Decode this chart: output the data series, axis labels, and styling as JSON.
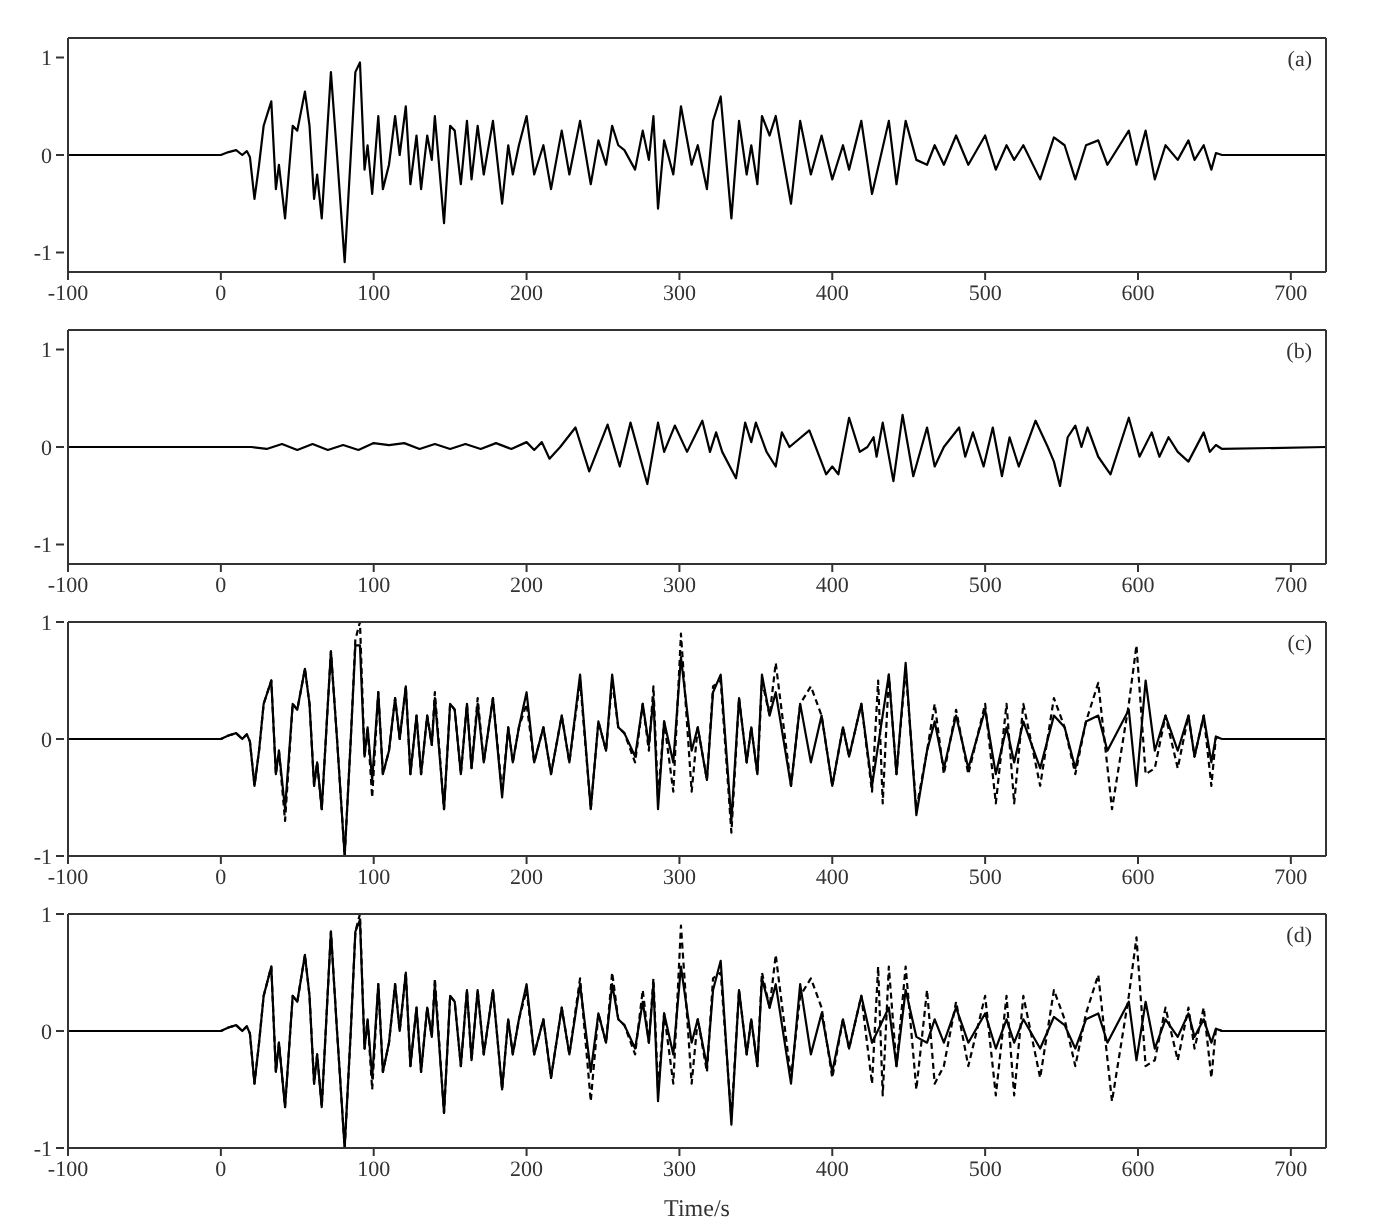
{
  "chart_data": [
    {
      "type": "line",
      "annotations": [
        "(a)"
      ],
      "xlim": [
        -100,
        723
      ],
      "xticks": [
        -100,
        0,
        100,
        200,
        300,
        400,
        500,
        600,
        700
      ],
      "ylim": [
        -1.2,
        1.2
      ],
      "yticks": [
        -1,
        0,
        1
      ],
      "series": [
        {
          "color": "#000000",
          "line_style": "solid",
          "x": [
            -100,
            0,
            5,
            10,
            14,
            17,
            19,
            22,
            25,
            28,
            33,
            36,
            38,
            42,
            47,
            50,
            55,
            58,
            61,
            63,
            66,
            72,
            76,
            81,
            85,
            88,
            91,
            94,
            96,
            99,
            103,
            106,
            110,
            114,
            117,
            121,
            124,
            128,
            131,
            135,
            138,
            140,
            146,
            150,
            153,
            157,
            161,
            164,
            168,
            172,
            178,
            184,
            188,
            191,
            195,
            200,
            205,
            211,
            216,
            223,
            228,
            235,
            242,
            247,
            252,
            256,
            260,
            264,
            271,
            276,
            280,
            283,
            286,
            290,
            296,
            301,
            308,
            312,
            318,
            322,
            327,
            334,
            339,
            344,
            347,
            351,
            354,
            359,
            363,
            373,
            379,
            386,
            393,
            400,
            407,
            411,
            419,
            426,
            437,
            442,
            448,
            455,
            462,
            467,
            473,
            481,
            489,
            500,
            507,
            514,
            519,
            525,
            536,
            545,
            552,
            559,
            566,
            574,
            580,
            594,
            599,
            605,
            611,
            618,
            626,
            633,
            637,
            643,
            648,
            651,
            655,
            723
          ],
          "values": [
            0,
            0,
            0.03,
            0.05,
            0,
            0.04,
            -0.02,
            -0.45,
            -0.1,
            0.3,
            0.55,
            -0.35,
            -0.1,
            -0.65,
            0.3,
            0.25,
            0.65,
            0.3,
            -0.45,
            -0.2,
            -0.65,
            0.85,
            0,
            -1.1,
            0,
            0.85,
            0.95,
            -0.15,
            0.1,
            -0.4,
            0.4,
            -0.35,
            -0.1,
            0.4,
            0,
            0.5,
            -0.3,
            0.2,
            -0.35,
            0.2,
            -0.05,
            0.4,
            -0.7,
            0.3,
            0.25,
            -0.3,
            0.35,
            -0.25,
            0.3,
            -0.2,
            0.35,
            -0.5,
            0.1,
            -0.2,
            0.1,
            0.4,
            -0.2,
            0.1,
            -0.35,
            0.25,
            -0.2,
            0.35,
            -0.3,
            0.15,
            -0.1,
            0.3,
            0.1,
            0.05,
            -0.15,
            0.25,
            -0.05,
            0.4,
            -0.55,
            0.15,
            -0.2,
            0.5,
            -0.1,
            0.1,
            -0.35,
            0.35,
            0.6,
            -0.65,
            0.35,
            -0.2,
            0.1,
            -0.3,
            0.4,
            0.2,
            0.4,
            -0.5,
            0.35,
            -0.2,
            0.2,
            -0.25,
            0.1,
            -0.15,
            0.35,
            -0.4,
            0.35,
            -0.3,
            0.35,
            -0.05,
            -0.1,
            0.1,
            -0.1,
            0.2,
            -0.1,
            0.2,
            -0.15,
            0.1,
            -0.05,
            0.1,
            -0.25,
            0.18,
            0.1,
            -0.25,
            0.1,
            0.15,
            -0.1,
            0.25,
            -0.1,
            0.25,
            -0.25,
            0.1,
            -0.05,
            0.15,
            -0.05,
            0.1,
            -0.15,
            0.02,
            0,
            0
          ]
        }
      ]
    },
    {
      "type": "line",
      "annotations": [
        "(b)"
      ],
      "xlim": [
        -100,
        723
      ],
      "xticks": [
        -100,
        0,
        100,
        200,
        300,
        400,
        500,
        600,
        700
      ],
      "ylim": [
        -1.2,
        1.2
      ],
      "yticks": [
        -1,
        0,
        1
      ],
      "series": [
        {
          "color": "#000000",
          "line_style": "solid",
          "x": [
            -100,
            20,
            30,
            40,
            50,
            60,
            70,
            80,
            90,
            100,
            110,
            120,
            130,
            140,
            150,
            160,
            170,
            180,
            190,
            200,
            205,
            210,
            215,
            222,
            232,
            241,
            253,
            261,
            268,
            279,
            286,
            290,
            297,
            305,
            315,
            320,
            324,
            328,
            337,
            343,
            347,
            350,
            357,
            363,
            367,
            372,
            385,
            396,
            400,
            404,
            411,
            418,
            423,
            427,
            429,
            433,
            440,
            446,
            453,
            462,
            467,
            473,
            483,
            487,
            492,
            499,
            505,
            511,
            516,
            522,
            533,
            541,
            545,
            549,
            554,
            559,
            563,
            567,
            574,
            582,
            594,
            601,
            609,
            614,
            620,
            626,
            633,
            643,
            647,
            651,
            655,
            723
          ],
          "values": [
            0,
            0,
            -0.02,
            0.03,
            -0.03,
            0.03,
            -0.03,
            0.02,
            -0.03,
            0.04,
            0.02,
            0.04,
            -0.02,
            0.03,
            -0.02,
            0.03,
            -0.02,
            0.04,
            -0.02,
            0.05,
            -0.03,
            0.05,
            -0.12,
            0,
            0.2,
            -0.25,
            0.23,
            -0.2,
            0.25,
            -0.38,
            0.25,
            -0.05,
            0.22,
            -0.05,
            0.27,
            -0.05,
            0.15,
            -0.05,
            -0.32,
            0.25,
            0.05,
            0.25,
            -0.05,
            -0.2,
            0.15,
            0,
            0.17,
            -0.28,
            -0.2,
            -0.28,
            0.3,
            -0.05,
            0,
            0.1,
            -0.1,
            0.25,
            -0.35,
            0.33,
            -0.3,
            0.2,
            -0.2,
            0,
            0.2,
            -0.1,
            0.15,
            -0.2,
            0.2,
            -0.3,
            0.1,
            -0.2,
            0.27,
            0,
            -0.15,
            -0.4,
            0.1,
            0.22,
            0,
            0.2,
            -0.1,
            -0.28,
            0.3,
            -0.1,
            0.15,
            -0.1,
            0.1,
            -0.05,
            -0.15,
            0.15,
            -0.05,
            0.02,
            -0.02,
            0
          ]
        }
      ]
    },
    {
      "type": "line",
      "annotations": [
        "(c)"
      ],
      "xlim": [
        -100,
        723
      ],
      "xticks": [
        -100,
        0,
        100,
        200,
        300,
        400,
        500,
        600,
        700
      ],
      "ylim": [
        -1,
        1
      ],
      "yticks": [
        -1,
        0,
        1
      ],
      "series": [
        {
          "color": "#000000",
          "line_style": "solid",
          "x": [
            -100,
            0,
            5,
            10,
            14,
            17,
            19,
            22,
            25,
            28,
            33,
            36,
            38,
            42,
            47,
            50,
            55,
            58,
            61,
            63,
            66,
            72,
            76,
            81,
            85,
            88,
            91,
            94,
            96,
            99,
            103,
            106,
            110,
            114,
            117,
            121,
            124,
            128,
            131,
            135,
            138,
            140,
            146,
            150,
            153,
            157,
            161,
            164,
            168,
            172,
            178,
            184,
            188,
            191,
            195,
            200,
            205,
            211,
            216,
            223,
            228,
            235,
            242,
            247,
            252,
            256,
            260,
            264,
            271,
            276,
            280,
            283,
            286,
            290,
            296,
            301,
            308,
            312,
            318,
            322,
            327,
            334,
            339,
            344,
            347,
            351,
            354,
            359,
            363,
            373,
            379,
            386,
            393,
            400,
            407,
            411,
            419,
            426,
            437,
            442,
            448,
            455,
            462,
            467,
            473,
            481,
            489,
            500,
            507,
            514,
            519,
            525,
            536,
            545,
            552,
            559,
            566,
            574,
            580,
            594,
            599,
            605,
            611,
            618,
            626,
            633,
            637,
            643,
            648,
            651,
            655,
            723
          ],
          "values": [
            0,
            0,
            0.03,
            0.05,
            0,
            0.04,
            -0.02,
            -0.4,
            -0.1,
            0.3,
            0.5,
            -0.3,
            -0.1,
            -0.6,
            0.3,
            0.25,
            0.6,
            0.3,
            -0.4,
            -0.2,
            -0.6,
            0.75,
            0,
            -1,
            0,
            0.8,
            0.8,
            -0.15,
            0.1,
            -0.35,
            0.4,
            -0.3,
            -0.1,
            0.35,
            0,
            0.45,
            -0.3,
            0.2,
            -0.3,
            0.2,
            -0.05,
            0.35,
            -0.6,
            0.3,
            0.25,
            -0.3,
            0.3,
            -0.25,
            0.3,
            -0.2,
            0.35,
            -0.5,
            0.1,
            -0.2,
            0.1,
            0.4,
            -0.2,
            0.1,
            -0.3,
            0.2,
            -0.2,
            0.55,
            -0.6,
            0.15,
            -0.1,
            0.55,
            0.1,
            0.05,
            -0.15,
            0.3,
            -0.05,
            0.35,
            -0.6,
            0.15,
            -0.2,
            0.7,
            -0.1,
            0.1,
            -0.35,
            0.4,
            0.55,
            -0.7,
            0.35,
            -0.2,
            0.1,
            -0.3,
            0.55,
            0.2,
            0.4,
            -0.4,
            0.3,
            -0.2,
            0.2,
            -0.4,
            0.1,
            -0.15,
            0.3,
            -0.4,
            0.55,
            -0.3,
            0.65,
            -0.65,
            -0.1,
            0.15,
            -0.25,
            0.2,
            -0.25,
            0.25,
            -0.3,
            0.1,
            -0.2,
            0.15,
            -0.25,
            0.2,
            0.1,
            -0.25,
            0.15,
            0.2,
            -0.1,
            0.25,
            -0.4,
            0.5,
            -0.1,
            0.2,
            -0.1,
            0.2,
            -0.15,
            0.2,
            -0.2,
            0.02,
            0,
            0
          ]
        },
        {
          "color": "#000000",
          "line_style": "dashed",
          "x": [
            -100,
            0,
            5,
            10,
            14,
            17,
            19,
            22,
            25,
            28,
            33,
            36,
            38,
            42,
            47,
            50,
            55,
            58,
            61,
            63,
            66,
            72,
            76,
            81,
            85,
            88,
            91,
            94,
            96,
            99,
            103,
            106,
            110,
            114,
            117,
            121,
            124,
            128,
            131,
            135,
            138,
            140,
            146,
            150,
            153,
            157,
            161,
            164,
            168,
            172,
            178,
            184,
            188,
            191,
            195,
            200,
            205,
            211,
            216,
            223,
            228,
            235,
            242,
            247,
            252,
            256,
            260,
            264,
            271,
            276,
            280,
            283,
            286,
            290,
            296,
            301,
            308,
            312,
            318,
            322,
            327,
            334,
            339,
            344,
            347,
            351,
            354,
            359,
            363,
            373,
            379,
            386,
            393,
            400,
            407,
            411,
            419,
            426,
            430,
            433,
            437,
            442,
            448,
            455,
            462,
            467,
            473,
            481,
            489,
            500,
            507,
            514,
            519,
            525,
            536,
            545,
            552,
            559,
            566,
            574,
            583,
            594,
            599,
            605,
            611,
            618,
            626,
            633,
            637,
            643,
            648,
            651,
            655,
            723
          ],
          "values": [
            0,
            0,
            0.03,
            0.05,
            0,
            0.04,
            -0.02,
            -0.4,
            -0.1,
            0.3,
            0.5,
            -0.3,
            -0.1,
            -0.7,
            0.3,
            0.25,
            0.6,
            0.3,
            -0.4,
            -0.2,
            -0.6,
            0.75,
            0,
            -1,
            0,
            0.85,
            1,
            -0.15,
            0.1,
            -0.5,
            0.4,
            -0.3,
            -0.1,
            0.35,
            0,
            0.45,
            -0.3,
            0.2,
            -0.3,
            0.2,
            -0.05,
            0.4,
            -0.6,
            0.3,
            0.25,
            -0.3,
            0.3,
            -0.25,
            0.35,
            -0.2,
            0.35,
            -0.45,
            0.1,
            -0.2,
            0.1,
            0.3,
            -0.2,
            0.1,
            -0.3,
            0.2,
            -0.2,
            0.5,
            -0.6,
            0.15,
            -0.1,
            0.5,
            0.1,
            0.05,
            -0.2,
            0.3,
            -0.1,
            0.45,
            -0.5,
            0.15,
            -0.45,
            0.9,
            -0.45,
            0.1,
            -0.35,
            0.45,
            0.5,
            -0.8,
            0.35,
            -0.2,
            0.1,
            -0.3,
            0.5,
            0.2,
            0.65,
            -0.4,
            0.3,
            0.45,
            0.2,
            -0.4,
            0.1,
            -0.15,
            0.3,
            -0.45,
            0.5,
            -0.55,
            0.55,
            -0.3,
            0.6,
            -0.6,
            -0.1,
            0.3,
            -0.3,
            0.25,
            -0.3,
            0.3,
            -0.55,
            0.3,
            -0.55,
            0.3,
            -0.4,
            0.35,
            0.1,
            -0.3,
            0.15,
            0.48,
            -0.6,
            0.3,
            0.8,
            -0.3,
            -0.25,
            0.2,
            -0.25,
            0.2,
            -0.15,
            0.2,
            -0.4,
            0.02,
            0,
            0
          ]
        }
      ]
    },
    {
      "type": "line",
      "annotations": [
        "(d)"
      ],
      "xlabel": "Time/s",
      "xlim": [
        -100,
        723
      ],
      "xticks": [
        -100,
        0,
        100,
        200,
        300,
        400,
        500,
        600,
        700
      ],
      "ylim": [
        -1,
        1
      ],
      "yticks": [
        -1,
        0,
        1
      ],
      "series": [
        {
          "color": "#000000",
          "line_style": "solid",
          "x": [
            -100,
            0,
            5,
            10,
            14,
            17,
            19,
            22,
            25,
            28,
            33,
            36,
            38,
            42,
            47,
            50,
            55,
            58,
            61,
            63,
            66,
            72,
            76,
            81,
            85,
            88,
            91,
            94,
            96,
            99,
            103,
            106,
            110,
            114,
            117,
            121,
            124,
            128,
            131,
            135,
            138,
            140,
            146,
            150,
            153,
            157,
            161,
            164,
            168,
            172,
            178,
            184,
            188,
            191,
            195,
            200,
            205,
            211,
            216,
            223,
            228,
            235,
            242,
            247,
            252,
            256,
            260,
            264,
            271,
            276,
            280,
            283,
            286,
            290,
            296,
            301,
            308,
            312,
            318,
            322,
            327,
            334,
            339,
            344,
            347,
            351,
            354,
            359,
            363,
            373,
            379,
            386,
            393,
            400,
            407,
            411,
            419,
            426,
            437,
            442,
            448,
            455,
            462,
            467,
            473,
            481,
            489,
            500,
            507,
            514,
            519,
            525,
            536,
            545,
            552,
            559,
            566,
            574,
            580,
            594,
            599,
            605,
            611,
            618,
            626,
            633,
            637,
            643,
            648,
            651,
            655,
            723
          ],
          "values": [
            0,
            0,
            0.03,
            0.05,
            0,
            0.04,
            -0.02,
            -0.45,
            -0.1,
            0.3,
            0.55,
            -0.35,
            -0.1,
            -0.65,
            0.3,
            0.25,
            0.65,
            0.3,
            -0.45,
            -0.2,
            -0.65,
            0.85,
            0,
            -1,
            0,
            0.85,
            0.95,
            -0.15,
            0.1,
            -0.4,
            0.4,
            -0.35,
            -0.1,
            0.4,
            0,
            0.5,
            -0.3,
            0.2,
            -0.35,
            0.2,
            -0.05,
            0.4,
            -0.7,
            0.3,
            0.25,
            -0.3,
            0.35,
            -0.25,
            0.35,
            -0.2,
            0.35,
            -0.5,
            0.1,
            -0.2,
            0.1,
            0.4,
            -0.2,
            0.1,
            -0.4,
            0.2,
            -0.2,
            0.4,
            -0.35,
            0.15,
            -0.1,
            0.4,
            0.1,
            0.05,
            -0.15,
            0.25,
            -0.1,
            0.4,
            -0.6,
            0.15,
            -0.2,
            0.55,
            -0.1,
            0.1,
            -0.3,
            0.35,
            0.6,
            -0.8,
            0.35,
            -0.2,
            0.1,
            -0.3,
            0.45,
            0.2,
            0.4,
            -0.45,
            0.4,
            -0.2,
            0.15,
            -0.35,
            0.1,
            -0.15,
            0.3,
            -0.1,
            0.2,
            -0.3,
            0.35,
            -0.05,
            -0.1,
            0.1,
            -0.1,
            0.2,
            -0.1,
            0.15,
            -0.15,
            0.1,
            -0.1,
            0.1,
            -0.15,
            0.12,
            0.05,
            -0.15,
            0.1,
            0.15,
            -0.1,
            0.25,
            -0.25,
            0.25,
            -0.15,
            0.1,
            -0.05,
            0.15,
            -0.05,
            0.1,
            -0.1,
            0.02,
            0,
            0
          ]
        },
        {
          "color": "#000000",
          "line_style": "dashed",
          "x": [
            -100,
            0,
            5,
            10,
            14,
            17,
            19,
            22,
            25,
            28,
            33,
            36,
            38,
            42,
            47,
            50,
            55,
            58,
            61,
            63,
            66,
            72,
            76,
            81,
            85,
            88,
            91,
            94,
            96,
            99,
            103,
            106,
            110,
            114,
            117,
            121,
            124,
            128,
            131,
            135,
            138,
            140,
            146,
            150,
            153,
            157,
            161,
            164,
            168,
            172,
            178,
            184,
            188,
            191,
            195,
            200,
            205,
            211,
            216,
            223,
            228,
            235,
            242,
            247,
            252,
            256,
            260,
            264,
            271,
            276,
            280,
            283,
            286,
            290,
            296,
            301,
            308,
            312,
            318,
            322,
            327,
            334,
            339,
            344,
            347,
            351,
            354,
            359,
            363,
            373,
            379,
            386,
            393,
            400,
            407,
            411,
            419,
            426,
            430,
            433,
            437,
            442,
            448,
            455,
            462,
            467,
            473,
            481,
            489,
            500,
            507,
            514,
            519,
            525,
            536,
            545,
            552,
            559,
            566,
            574,
            583,
            594,
            599,
            605,
            611,
            618,
            626,
            633,
            637,
            643,
            648,
            651,
            655,
            723
          ],
          "values": [
            0,
            0,
            0.03,
            0.05,
            0,
            0.04,
            -0.02,
            -0.45,
            -0.1,
            0.3,
            0.55,
            -0.35,
            -0.1,
            -0.65,
            0.3,
            0.25,
            0.65,
            0.3,
            -0.45,
            -0.2,
            -0.65,
            0.85,
            0,
            -1,
            0,
            0.85,
            1,
            -0.15,
            0.1,
            -0.5,
            0.4,
            -0.35,
            -0.1,
            0.4,
            0,
            0.5,
            -0.3,
            0.2,
            -0.35,
            0.2,
            -0.05,
            0.45,
            -0.7,
            0.3,
            0.25,
            -0.3,
            0.35,
            -0.25,
            0.35,
            -0.2,
            0.35,
            -0.5,
            0.1,
            -0.2,
            0.1,
            0.35,
            -0.2,
            0.1,
            -0.4,
            0.2,
            -0.2,
            0.45,
            -0.6,
            0.15,
            -0.1,
            0.5,
            0.1,
            0.05,
            -0.2,
            0.35,
            -0.1,
            0.45,
            -0.5,
            0.15,
            -0.45,
            0.9,
            -0.45,
            0.1,
            -0.35,
            0.45,
            0.5,
            -0.75,
            0.35,
            -0.2,
            0.1,
            -0.3,
            0.5,
            0.2,
            0.65,
            -0.4,
            0.3,
            0.45,
            0.2,
            -0.4,
            0.1,
            -0.15,
            0.3,
            -0.45,
            0.55,
            -0.55,
            0.55,
            -0.3,
            0.55,
            -0.5,
            0.35,
            -0.45,
            -0.3,
            0.25,
            -0.3,
            0.3,
            -0.55,
            0.3,
            -0.55,
            0.3,
            -0.4,
            0.35,
            0.1,
            -0.3,
            0.15,
            0.48,
            -0.6,
            0.3,
            0.8,
            -0.3,
            -0.25,
            0.2,
            -0.25,
            0.2,
            -0.15,
            0.2,
            -0.4,
            0.02,
            0,
            0
          ]
        }
      ]
    }
  ]
}
